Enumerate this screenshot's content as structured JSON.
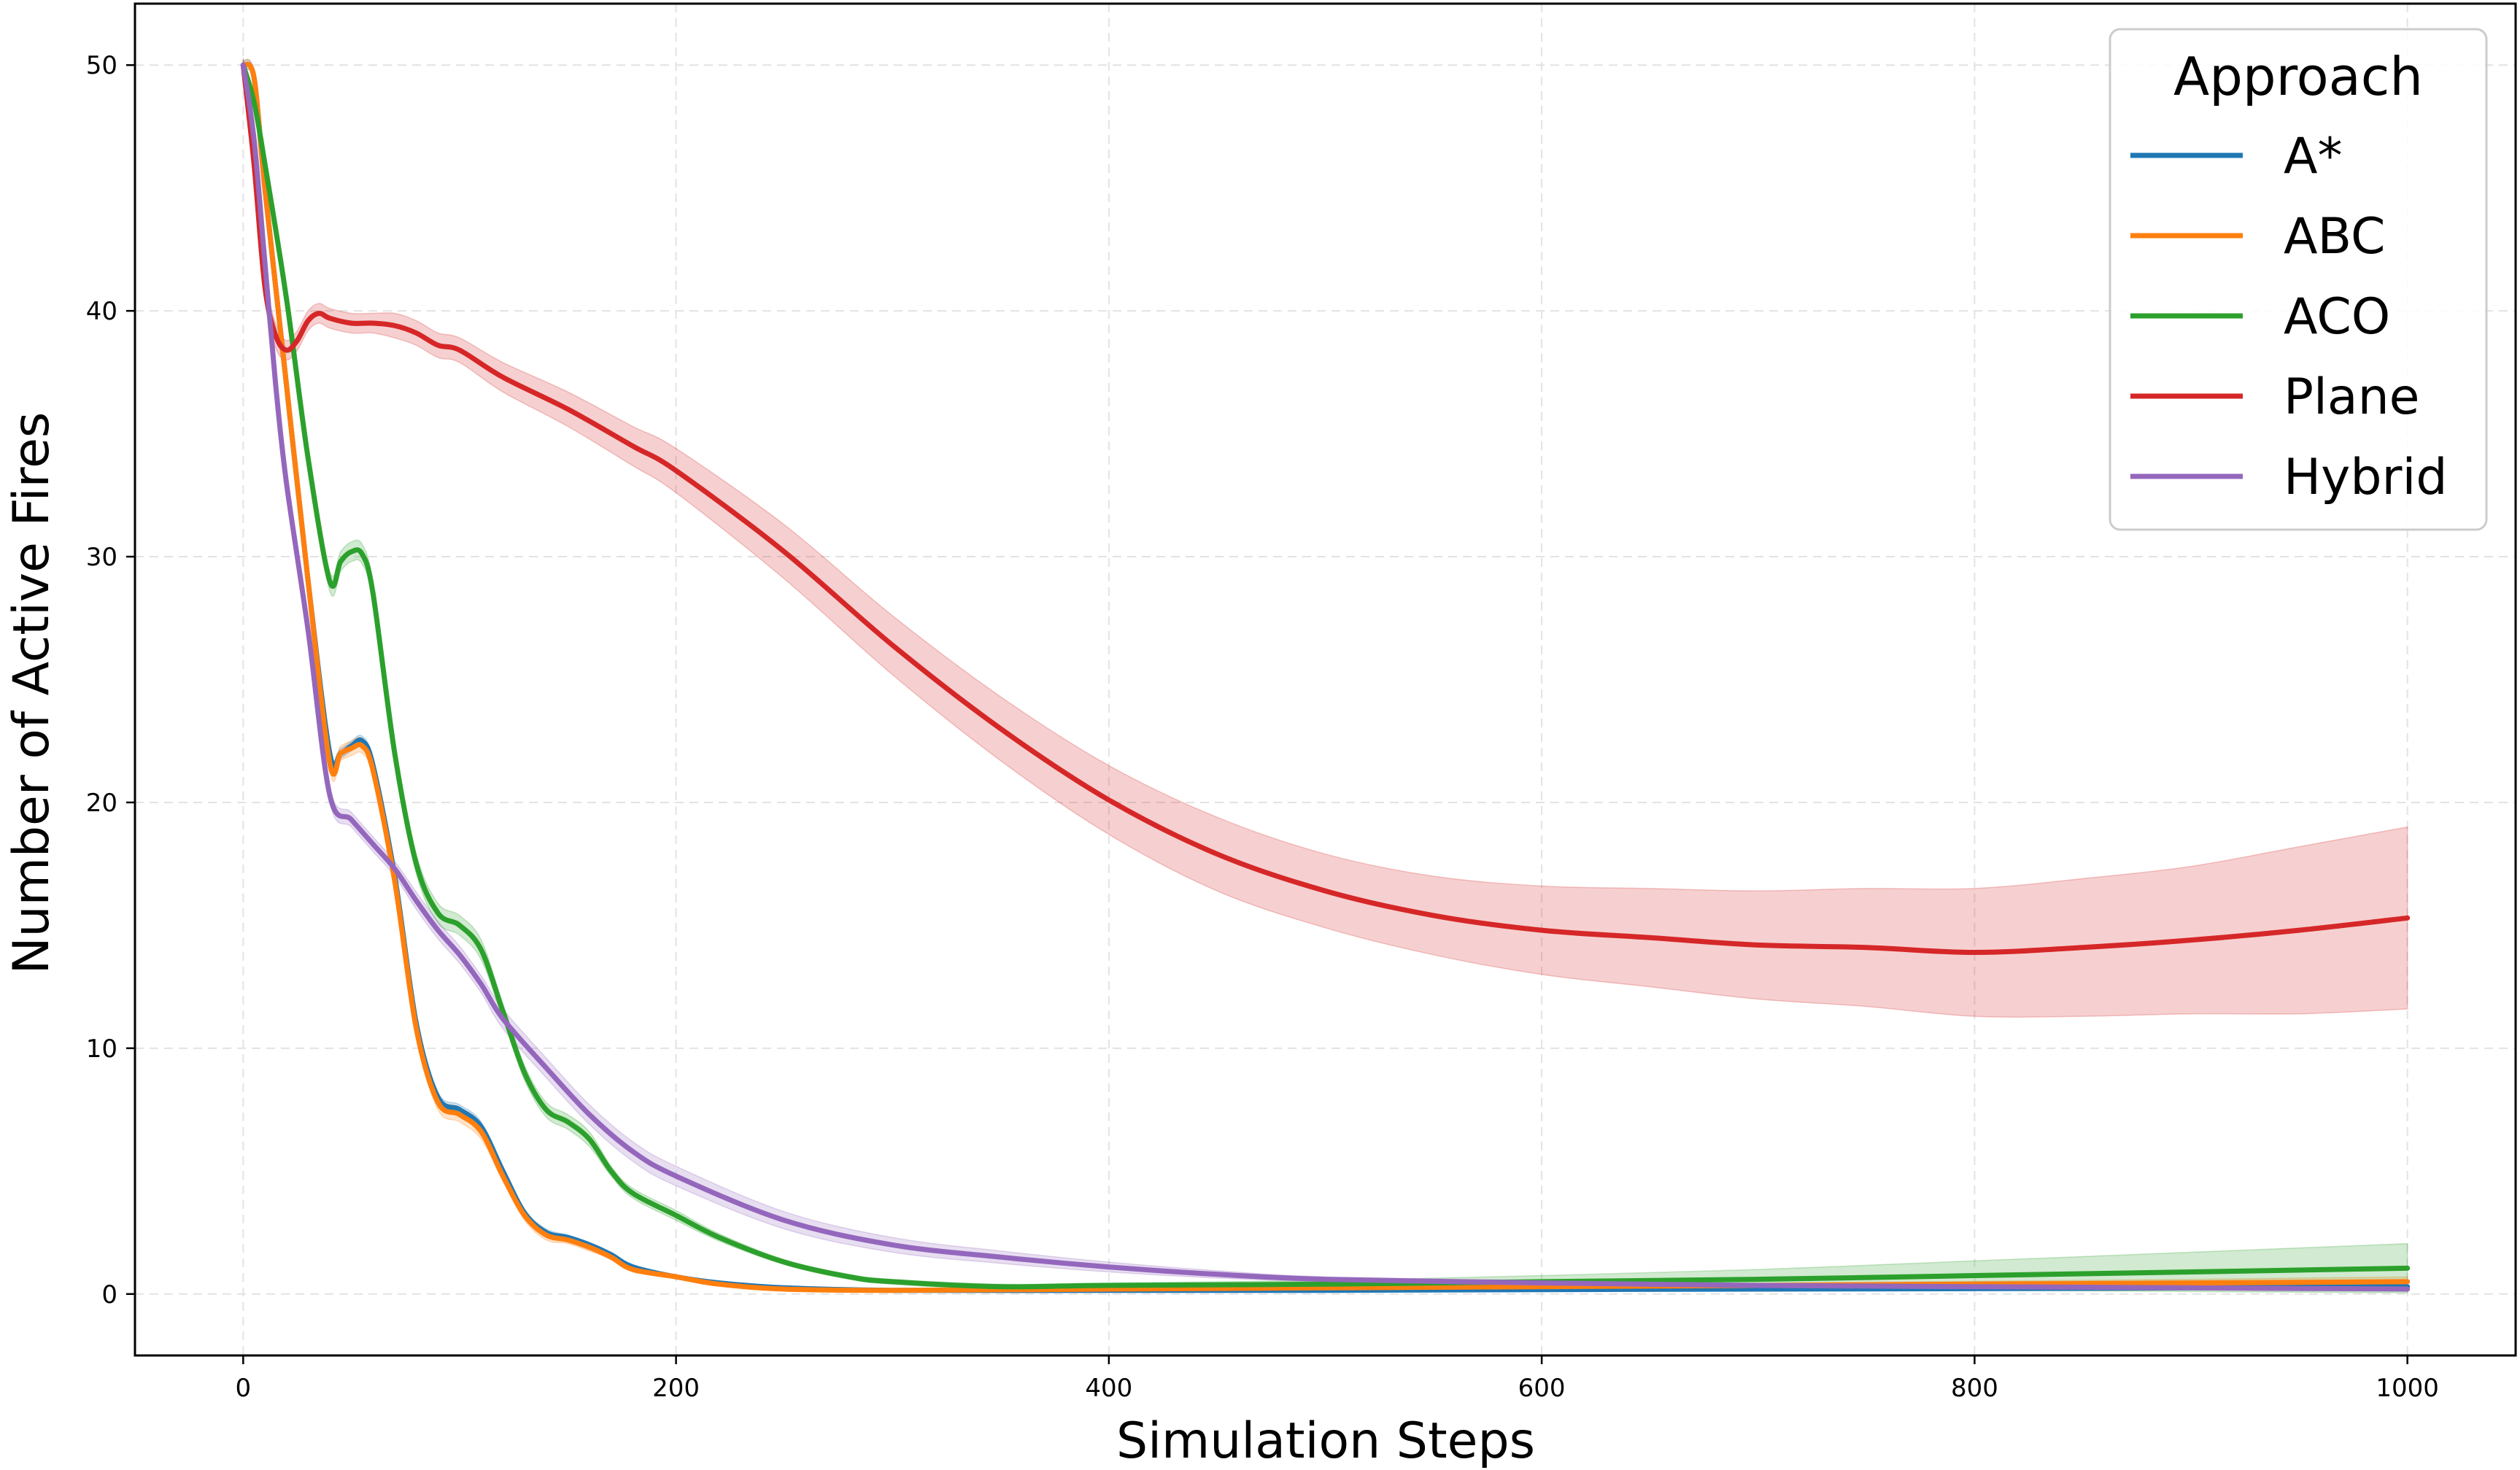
{
  "chart_data": {
    "type": "line",
    "title": "",
    "xlabel": "Simulation Steps",
    "ylabel": "Number of Active Fires",
    "xlim": [
      -50,
      1050
    ],
    "ylim": [
      -2.5,
      52.5
    ],
    "xticks": [
      0,
      200,
      400,
      600,
      800,
      1000
    ],
    "yticks": [
      0,
      10,
      20,
      30,
      40,
      50
    ],
    "grid": true,
    "legend": {
      "title": "Approach",
      "placement": "top-right"
    },
    "series": [
      {
        "name": "A*",
        "color": "#1f77b4",
        "x": [
          0,
          5,
          10,
          20,
          30,
          40,
          45,
          50,
          55,
          60,
          70,
          80,
          90,
          100,
          110,
          120,
          130,
          140,
          150,
          160,
          170,
          180,
          200,
          220,
          250,
          300,
          400,
          500,
          600,
          700,
          800,
          900,
          1000
        ],
        "y": [
          50,
          49.5,
          45,
          37,
          29,
          22,
          22,
          22.3,
          22.5,
          21.5,
          17,
          11,
          8,
          7.5,
          6.8,
          5,
          3.3,
          2.5,
          2.3,
          2,
          1.6,
          1.1,
          0.7,
          0.45,
          0.25,
          0.15,
          0.15,
          0.15,
          0.18,
          0.2,
          0.22,
          0.25,
          0.3
        ],
        "band": [
          0.2,
          0.2,
          0.2,
          0.2,
          0.2,
          0.2,
          0.2,
          0.2,
          0.2,
          0.2,
          0.2,
          0.2,
          0.2,
          0.2,
          0.2,
          0.15,
          0.15,
          0.15,
          0.1,
          0.1,
          0.1,
          0.1,
          0.05,
          0.05,
          0.05,
          0.05,
          0.05,
          0.05,
          0.05,
          0.05,
          0.05,
          0.05,
          0.05
        ]
      },
      {
        "name": "ABC",
        "color": "#ff7f0e",
        "x": [
          0,
          5,
          10,
          20,
          30,
          40,
          45,
          50,
          55,
          60,
          70,
          80,
          90,
          100,
          110,
          120,
          130,
          140,
          150,
          160,
          170,
          180,
          200,
          220,
          250,
          300,
          400,
          500,
          600,
          700,
          800,
          900,
          1000
        ],
        "y": [
          50,
          49.5,
          45,
          37,
          29,
          21.6,
          22,
          22.2,
          22.3,
          21.3,
          16.8,
          10.8,
          7.8,
          7.3,
          6.6,
          4.8,
          3.2,
          2.4,
          2.2,
          1.9,
          1.5,
          1.0,
          0.7,
          0.4,
          0.2,
          0.15,
          0.2,
          0.25,
          0.3,
          0.35,
          0.4,
          0.45,
          0.5
        ],
        "band": [
          0.2,
          0.2,
          0.2,
          0.2,
          0.2,
          0.3,
          0.3,
          0.3,
          0.3,
          0.3,
          0.3,
          0.3,
          0.3,
          0.3,
          0.3,
          0.2,
          0.2,
          0.2,
          0.15,
          0.15,
          0.1,
          0.1,
          0.05,
          0.05,
          0.05,
          0.05,
          0.05,
          0.05,
          0.08,
          0.1,
          0.12,
          0.15,
          0.2
        ]
      },
      {
        "name": "ACO",
        "color": "#2ca02c",
        "x": [
          0,
          5,
          10,
          20,
          30,
          40,
          45,
          50,
          55,
          60,
          70,
          80,
          90,
          100,
          110,
          120,
          130,
          140,
          150,
          160,
          170,
          180,
          200,
          220,
          250,
          280,
          300,
          350,
          400,
          500,
          600,
          700,
          800,
          900,
          1000
        ],
        "y": [
          50,
          48.5,
          46,
          40.5,
          34,
          29,
          29.8,
          30.2,
          30.1,
          28.5,
          22,
          17.5,
          15.5,
          15,
          14,
          11.5,
          9,
          7.5,
          7,
          6.3,
          5,
          4.1,
          3.2,
          2.3,
          1.3,
          0.7,
          0.5,
          0.3,
          0.35,
          0.4,
          0.5,
          0.6,
          0.75,
          0.9,
          1.05
        ],
        "band": [
          0.2,
          0.3,
          0.3,
          0.3,
          0.3,
          0.4,
          0.4,
          0.4,
          0.4,
          0.4,
          0.4,
          0.4,
          0.4,
          0.4,
          0.4,
          0.3,
          0.3,
          0.3,
          0.3,
          0.3,
          0.2,
          0.2,
          0.2,
          0.15,
          0.1,
          0.1,
          0.1,
          0.1,
          0.1,
          0.15,
          0.25,
          0.4,
          0.6,
          0.8,
          1.0
        ]
      },
      {
        "name": "Plane",
        "color": "#d62728",
        "x": [
          0,
          5,
          10,
          15,
          20,
          25,
          30,
          35,
          40,
          50,
          60,
          70,
          80,
          90,
          100,
          120,
          150,
          180,
          200,
          250,
          300,
          350,
          400,
          450,
          500,
          550,
          600,
          650,
          700,
          750,
          800,
          850,
          900,
          950,
          1000
        ],
        "y": [
          50,
          46,
          41,
          39,
          38.4,
          38.8,
          39.6,
          39.9,
          39.7,
          39.5,
          39.5,
          39.4,
          39.1,
          38.6,
          38.4,
          37.3,
          36,
          34.5,
          33.5,
          30.2,
          26.4,
          23,
          20.1,
          17.9,
          16.4,
          15.4,
          14.8,
          14.5,
          14.2,
          14.1,
          13.9,
          14.1,
          14.4,
          14.8,
          15.3
        ],
        "band": [
          0.3,
          0.5,
          0.5,
          0.5,
          0.4,
          0.4,
          0.4,
          0.4,
          0.4,
          0.4,
          0.4,
          0.5,
          0.5,
          0.5,
          0.5,
          0.6,
          0.7,
          0.8,
          0.9,
          1.1,
          1.2,
          1.3,
          1.4,
          1.5,
          1.5,
          1.6,
          1.8,
          2.0,
          2.2,
          2.4,
          2.6,
          2.8,
          3.0,
          3.4,
          3.7
        ]
      },
      {
        "name": "Hybrid",
        "color": "#9467bd",
        "x": [
          0,
          5,
          10,
          15,
          20,
          30,
          40,
          50,
          60,
          70,
          80,
          90,
          100,
          110,
          120,
          140,
          160,
          180,
          200,
          250,
          300,
          350,
          400,
          450,
          500,
          600,
          700,
          800,
          900,
          1000
        ],
        "y": [
          50,
          47,
          42,
          37,
          33,
          27,
          20.3,
          19.3,
          18.3,
          17.3,
          16,
          14.8,
          13.8,
          12.6,
          11.2,
          9.2,
          7.3,
          5.8,
          4.8,
          3,
          2,
          1.5,
          1.1,
          0.8,
          0.6,
          0.45,
          0.35,
          0.3,
          0.25,
          0.2
        ],
        "band": [
          0.2,
          0.3,
          0.3,
          0.3,
          0.3,
          0.3,
          0.3,
          0.3,
          0.3,
          0.3,
          0.35,
          0.35,
          0.35,
          0.35,
          0.4,
          0.4,
          0.4,
          0.4,
          0.4,
          0.35,
          0.3,
          0.25,
          0.2,
          0.15,
          0.1,
          0.1,
          0.05,
          0.05,
          0.05,
          0.05
        ]
      }
    ]
  }
}
